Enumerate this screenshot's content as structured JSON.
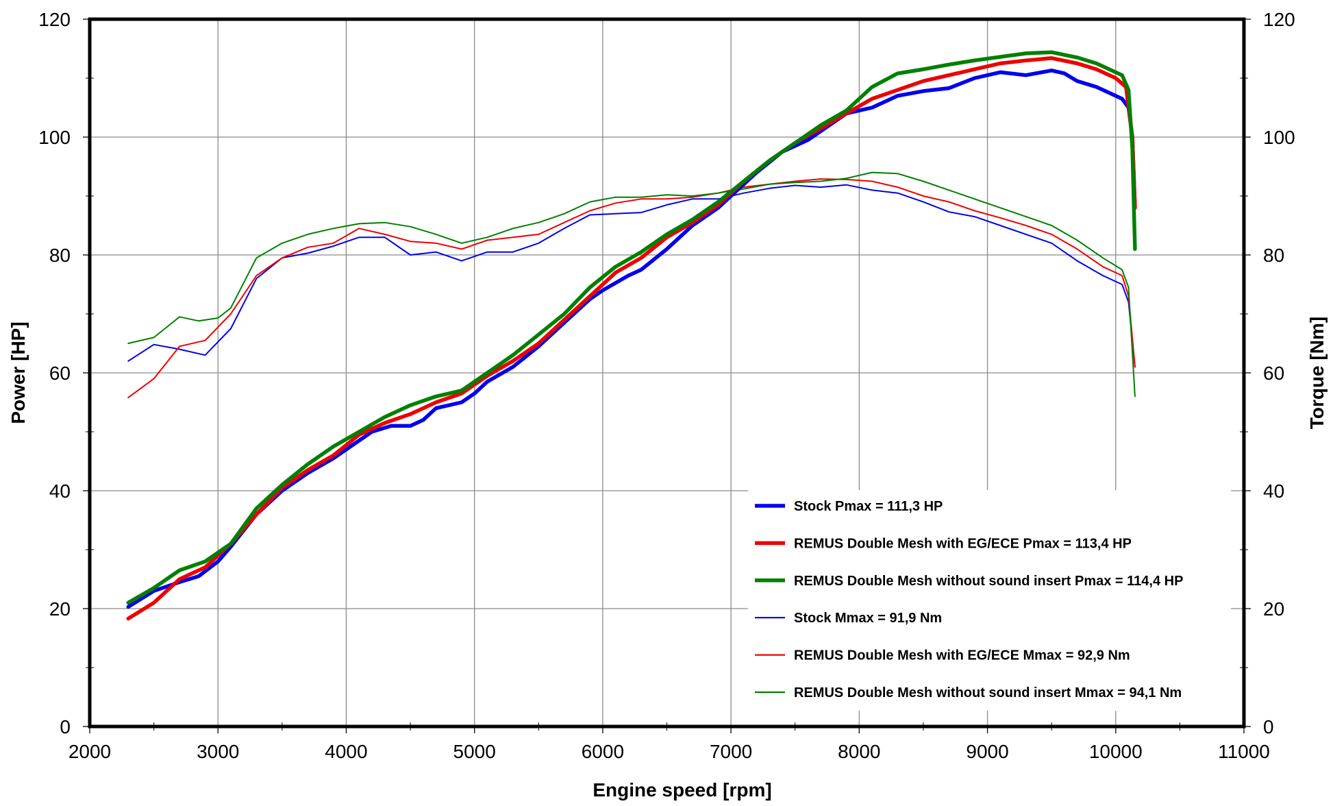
{
  "chart_data": {
    "type": "line",
    "title": "",
    "xlabel": "Engine speed [rpm]",
    "ylabel": "Power [HP]",
    "y2label": "Torque [Nm]",
    "xlim": [
      2000,
      11000
    ],
    "ylim": [
      0,
      120
    ],
    "y2lim": [
      0,
      120
    ],
    "xticks": [
      "2000",
      "3000",
      "4000",
      "5000",
      "6000",
      "7000",
      "8000",
      "9000",
      "10000",
      "11000"
    ],
    "yticks": [
      "0",
      "20",
      "40",
      "60",
      "80",
      "100",
      "120"
    ],
    "y2ticks": [
      "0",
      "20",
      "40",
      "60",
      "80",
      "100",
      "120"
    ],
    "grid": true,
    "legend_position": "bottom-right",
    "series": [
      {
        "name": "Stock Pmax = 111,3 HP",
        "color": "#0000ee",
        "kind": "power",
        "x": [
          2300,
          2500,
          2700,
          2850,
          3000,
          3100,
          3300,
          3500,
          3700,
          3900,
          4000,
          4200,
          4350,
          4500,
          4600,
          4700,
          4900,
          5000,
          5100,
          5300,
          5500,
          5700,
          5900,
          6000,
          6200,
          6300,
          6500,
          6700,
          6900,
          7000,
          7200,
          7400,
          7600,
          7800,
          7900,
          8100,
          8300,
          8500,
          8700,
          8900,
          9100,
          9300,
          9500,
          9600,
          9700,
          9850,
          9950,
          10050,
          10100,
          10130,
          10150
        ],
        "y": [
          20.3,
          23,
          24.5,
          25.5,
          28,
          30.5,
          36,
          40,
          43,
          45.5,
          47,
          50,
          51,
          51,
          52,
          54,
          55,
          56.5,
          58.5,
          61,
          64.5,
          68.5,
          72.5,
          74,
          76.5,
          77.5,
          81,
          85,
          88,
          90,
          94,
          97.5,
          99.5,
          102.5,
          104,
          105,
          107,
          107.8,
          108.3,
          110,
          111,
          110.5,
          111.3,
          110.8,
          109.5,
          108.5,
          107.5,
          106.5,
          105,
          100,
          88
        ]
      },
      {
        "name": "REMUS Double Mesh with EG/ECE Pmax = 113,4 HP",
        "color": "#ee0000",
        "kind": "power",
        "x": [
          2300,
          2500,
          2700,
          2900,
          3100,
          3300,
          3500,
          3700,
          3900,
          4100,
          4300,
          4500,
          4700,
          4900,
          5100,
          5300,
          5500,
          5700,
          5900,
          6100,
          6300,
          6500,
          6700,
          6900,
          7100,
          7300,
          7500,
          7700,
          7900,
          8100,
          8300,
          8500,
          8700,
          8900,
          9100,
          9300,
          9500,
          9700,
          9850,
          10000,
          10080,
          10130,
          10150
        ],
        "y": [
          18.3,
          21,
          25,
          27,
          31,
          36,
          40.5,
          43.5,
          46,
          49.5,
          51.5,
          53,
          55,
          56.5,
          59.5,
          62,
          65,
          69,
          73,
          77,
          79.5,
          83,
          85.5,
          88.5,
          92.5,
          96,
          99,
          101.5,
          104,
          106.5,
          108,
          109.5,
          110.5,
          111.5,
          112.5,
          113,
          113.4,
          112.5,
          111.5,
          110,
          108.5,
          100,
          88
        ]
      },
      {
        "name": "REMUS Double Mesh without sound insert Pmax = 114,4 HP",
        "color": "#008000",
        "kind": "power",
        "x": [
          2300,
          2500,
          2700,
          2900,
          3100,
          3300,
          3500,
          3700,
          3900,
          4100,
          4300,
          4500,
          4700,
          4900,
          5100,
          5300,
          5500,
          5700,
          5900,
          6100,
          6300,
          6500,
          6700,
          6900,
          7100,
          7300,
          7500,
          7700,
          7900,
          8100,
          8300,
          8500,
          8700,
          8900,
          9100,
          9300,
          9500,
          9700,
          9850,
          9950,
          10050,
          10100,
          10130,
          10150
        ],
        "y": [
          21,
          23.5,
          26.5,
          28,
          31,
          37,
          41,
          44.5,
          47.5,
          50,
          52.5,
          54.5,
          56,
          57,
          60,
          63,
          66.5,
          70,
          74.5,
          78,
          80.5,
          83.5,
          86,
          89,
          92.5,
          96,
          99,
          102,
          104.5,
          108.5,
          110.8,
          111.5,
          112.3,
          113,
          113.6,
          114.2,
          114.4,
          113.5,
          112.5,
          111.5,
          110.5,
          108,
          98,
          81
        ]
      },
      {
        "name": "Stock Mmax = 91,9 Nm",
        "color": "#0000ee",
        "kind": "torque",
        "x": [
          2300,
          2500,
          2700,
          2900,
          3100,
          3300,
          3500,
          3700,
          3900,
          4100,
          4300,
          4500,
          4700,
          4900,
          5100,
          5300,
          5500,
          5700,
          5900,
          6100,
          6300,
          6500,
          6700,
          6900,
          7100,
          7300,
          7500,
          7700,
          7900,
          8100,
          8300,
          8500,
          8700,
          8900,
          9100,
          9300,
          9500,
          9700,
          9900,
          10050,
          10100,
          10150
        ],
        "y": [
          62,
          64.8,
          64,
          63,
          67.5,
          76,
          79.5,
          80.3,
          81.5,
          83,
          83,
          80,
          80.5,
          79,
          80.5,
          80.5,
          82,
          84.5,
          86.8,
          87,
          87.2,
          88.5,
          89.5,
          89.5,
          90.5,
          91.3,
          91.8,
          91.5,
          91.9,
          91,
          90.5,
          89,
          87.3,
          86.5,
          85,
          83.5,
          82,
          79,
          76.5,
          75,
          72,
          61
        ]
      },
      {
        "name": "REMUS Double Mesh with EG/ECE Mmax = 92,9 Nm",
        "color": "#ee0000",
        "kind": "torque",
        "x": [
          2300,
          2500,
          2700,
          2900,
          3100,
          3300,
          3500,
          3700,
          3900,
          4100,
          4300,
          4500,
          4700,
          4900,
          5100,
          5300,
          5500,
          5700,
          5900,
          6100,
          6300,
          6500,
          6700,
          6900,
          7100,
          7300,
          7500,
          7700,
          7900,
          8100,
          8300,
          8500,
          8700,
          8900,
          9100,
          9300,
          9500,
          9700,
          9900,
          10050,
          10100,
          10150
        ],
        "y": [
          55.8,
          59,
          64.5,
          65.5,
          70,
          76.5,
          79.5,
          81.3,
          82,
          84.5,
          83.5,
          82.3,
          82,
          81,
          82.5,
          83,
          83.5,
          85.5,
          87.5,
          88.8,
          89.5,
          89.5,
          89.8,
          90.5,
          91.5,
          92,
          92.5,
          92.9,
          92.8,
          92.5,
          91.5,
          90,
          89,
          87.5,
          86.3,
          85,
          83.5,
          81,
          78,
          76.5,
          73,
          61
        ]
      },
      {
        "name": "REMUS Double Mesh without sound insert Mmax = 94,1 Nm",
        "color": "#008000",
        "kind": "torque",
        "x": [
          2300,
          2500,
          2700,
          2850,
          3000,
          3100,
          3300,
          3500,
          3700,
          3900,
          4100,
          4300,
          4500,
          4700,
          4900,
          5100,
          5300,
          5500,
          5700,
          5900,
          6100,
          6300,
          6500,
          6700,
          6900,
          7100,
          7300,
          7500,
          7700,
          7900,
          8100,
          8300,
          8500,
          8700,
          8900,
          9100,
          9300,
          9500,
          9700,
          9900,
          10050,
          10100,
          10150
        ],
        "y": [
          65,
          66,
          69.5,
          68.8,
          69.3,
          71,
          79.5,
          82,
          83.5,
          84.5,
          85.3,
          85.5,
          84.8,
          83.5,
          82,
          83,
          84.5,
          85.5,
          87,
          89,
          89.8,
          89.8,
          90.2,
          90,
          90.5,
          91.2,
          92,
          92.3,
          92.5,
          93,
          94,
          93.8,
          92.5,
          91,
          89.5,
          88,
          86.5,
          85,
          82.5,
          79.5,
          77.5,
          74.5,
          56
        ]
      }
    ]
  }
}
